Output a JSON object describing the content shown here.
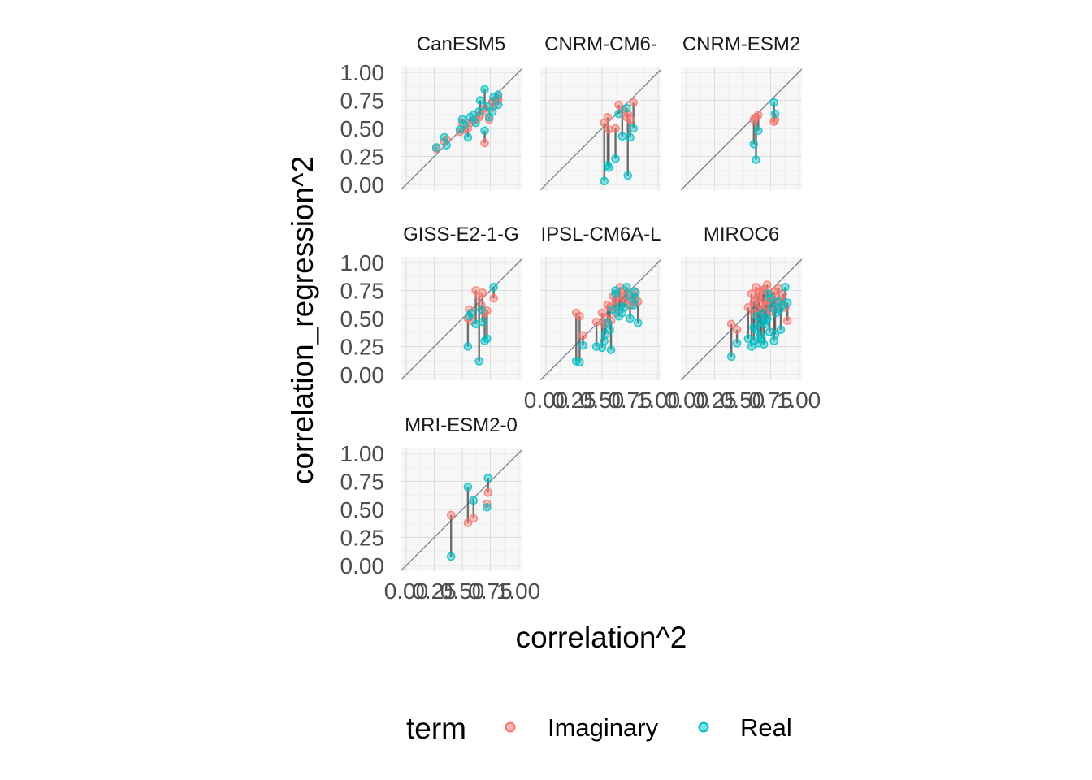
{
  "chart_data": {
    "type": "scatter",
    "xlabel": "correlation^2",
    "ylabel": "correlation_regression^2",
    "xlim": [
      0,
      1
    ],
    "ylim": [
      0,
      1
    ],
    "x_ticks": [
      "0.00",
      "0.25",
      "0.50",
      "0.75",
      "1.00"
    ],
    "y_ticks": [
      "0.00",
      "0.25",
      "0.50",
      "0.75",
      "1.00"
    ],
    "grid": true,
    "reference_line": "y = x",
    "legend": {
      "title": "term",
      "position": "bottom",
      "entries": [
        {
          "label": "Imaginary",
          "color": "#F8766D"
        },
        {
          "label": "Real",
          "color": "#00BFC4"
        }
      ]
    },
    "panels": [
      {
        "title": "CanESM5",
        "pairs": [
          [
            0.27,
            0.32,
            0.33
          ],
          [
            0.34,
            0.38,
            0.42
          ],
          [
            0.36,
            0.4,
            0.35
          ],
          [
            0.48,
            0.47,
            0.49
          ],
          [
            0.52,
            0.49,
            0.53
          ],
          [
            0.55,
            0.5,
            0.42
          ],
          [
            0.57,
            0.55,
            0.6
          ],
          [
            0.6,
            0.57,
            0.62
          ],
          [
            0.62,
            0.58,
            0.55
          ],
          [
            0.65,
            0.6,
            0.65
          ],
          [
            0.7,
            0.37,
            0.48
          ],
          [
            0.72,
            0.65,
            0.7
          ],
          [
            0.78,
            0.7,
            0.78
          ],
          [
            0.82,
            0.75,
            0.8
          ],
          [
            0.82,
            0.77,
            0.71
          ],
          [
            0.7,
            0.68,
            0.85
          ],
          [
            0.74,
            0.58,
            0.6
          ],
          [
            0.66,
            0.62,
            0.75
          ],
          [
            0.5,
            0.55,
            0.58
          ],
          [
            0.77,
            0.74,
            0.65
          ]
        ]
      },
      {
        "title": "CNRM-CM6-",
        "pairs": [
          [
            0.52,
            0.55,
            0.03
          ],
          [
            0.55,
            0.6,
            0.17
          ],
          [
            0.62,
            0.5,
            0.23
          ],
          [
            0.65,
            0.71,
            0.63
          ],
          [
            0.68,
            0.67,
            0.43
          ],
          [
            0.73,
            0.63,
            0.08
          ],
          [
            0.75,
            0.58,
            0.42
          ],
          [
            0.78,
            0.73,
            0.5
          ],
          [
            0.72,
            0.6,
            0.68
          ],
          [
            0.56,
            0.49,
            0.15
          ]
        ]
      },
      {
        "title": "CNRM-ESM2",
        "pairs": [
          [
            0.6,
            0.58,
            0.36
          ],
          [
            0.62,
            0.6,
            0.22
          ],
          [
            0.64,
            0.62,
            0.48
          ],
          [
            0.78,
            0.56,
            0.73
          ],
          [
            0.79,
            0.58,
            0.63
          ]
        ]
      },
      {
        "title": "GISS-E2-1-G",
        "pairs": [
          [
            0.55,
            0.5,
            0.25
          ],
          [
            0.58,
            0.48,
            0.55
          ],
          [
            0.62,
            0.75,
            0.45
          ],
          [
            0.65,
            0.7,
            0.12
          ],
          [
            0.67,
            0.62,
            0.58
          ],
          [
            0.7,
            0.55,
            0.3
          ],
          [
            0.72,
            0.57,
            0.32
          ],
          [
            0.78,
            0.68,
            0.78
          ],
          [
            0.68,
            0.73,
            0.47
          ],
          [
            0.56,
            0.58,
            0.52
          ]
        ]
      },
      {
        "title": "IPSL-CM6A-L",
        "pairs": [
          [
            0.27,
            0.55,
            0.12
          ],
          [
            0.3,
            0.52,
            0.11
          ],
          [
            0.33,
            0.35,
            0.26
          ],
          [
            0.45,
            0.47,
            0.25
          ],
          [
            0.5,
            0.55,
            0.24
          ],
          [
            0.53,
            0.5,
            0.36
          ],
          [
            0.55,
            0.62,
            0.46
          ],
          [
            0.58,
            0.48,
            0.22
          ],
          [
            0.6,
            0.7,
            0.58
          ],
          [
            0.62,
            0.66,
            0.75
          ],
          [
            0.65,
            0.72,
            0.52
          ],
          [
            0.68,
            0.7,
            0.55
          ],
          [
            0.7,
            0.75,
            0.6
          ],
          [
            0.72,
            0.66,
            0.78
          ],
          [
            0.75,
            0.62,
            0.5
          ],
          [
            0.78,
            0.7,
            0.62
          ],
          [
            0.8,
            0.73,
            0.68
          ],
          [
            0.82,
            0.65,
            0.46
          ],
          [
            0.57,
            0.6,
            0.4
          ],
          [
            0.62,
            0.55,
            0.72
          ],
          [
            0.66,
            0.78,
            0.6
          ],
          [
            0.74,
            0.68,
            0.7
          ],
          [
            0.52,
            0.45,
            0.3
          ],
          [
            0.79,
            0.64,
            0.74
          ]
        ]
      },
      {
        "title": "MIROC6",
        "pairs": [
          [
            0.4,
            0.45,
            0.16
          ],
          [
            0.45,
            0.4,
            0.28
          ],
          [
            0.55,
            0.6,
            0.32
          ],
          [
            0.58,
            0.72,
            0.25
          ],
          [
            0.6,
            0.65,
            0.3
          ],
          [
            0.62,
            0.78,
            0.4
          ],
          [
            0.64,
            0.7,
            0.28
          ],
          [
            0.66,
            0.62,
            0.35
          ],
          [
            0.68,
            0.75,
            0.55
          ],
          [
            0.7,
            0.66,
            0.45
          ],
          [
            0.72,
            0.8,
            0.5
          ],
          [
            0.74,
            0.72,
            0.38
          ],
          [
            0.76,
            0.68,
            0.6
          ],
          [
            0.78,
            0.74,
            0.3
          ],
          [
            0.8,
            0.6,
            0.55
          ],
          [
            0.82,
            0.77,
            0.65
          ],
          [
            0.84,
            0.66,
            0.4
          ],
          [
            0.86,
            0.72,
            0.62
          ],
          [
            0.88,
            0.6,
            0.78
          ],
          [
            0.9,
            0.48,
            0.64
          ],
          [
            0.6,
            0.55,
            0.42
          ],
          [
            0.63,
            0.68,
            0.52
          ],
          [
            0.67,
            0.58,
            0.32
          ],
          [
            0.71,
            0.62,
            0.48
          ],
          [
            0.75,
            0.56,
            0.68
          ],
          [
            0.79,
            0.7,
            0.36
          ],
          [
            0.83,
            0.64,
            0.58
          ],
          [
            0.69,
            0.76,
            0.27
          ],
          [
            0.73,
            0.66,
            0.72
          ],
          [
            0.65,
            0.74,
            0.46
          ]
        ]
      },
      {
        "title": "MRI-ESM2-0",
        "pairs": [
          [
            0.4,
            0.45,
            0.08
          ],
          [
            0.55,
            0.38,
            0.7
          ],
          [
            0.6,
            0.42,
            0.58
          ],
          [
            0.72,
            0.55,
            0.52
          ],
          [
            0.73,
            0.65,
            0.78
          ]
        ]
      }
    ]
  }
}
